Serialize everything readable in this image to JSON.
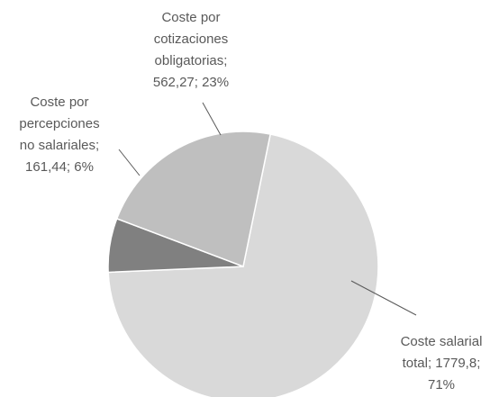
{
  "chart_data": {
    "type": "pie",
    "categories": [
      "Coste salarial total",
      "Coste por percepciones no salariales",
      "Coste por cotizaciones obligatorias"
    ],
    "values": [
      1779.8,
      161.44,
      562.27
    ],
    "value_labels": [
      [
        "Coste salarial",
        "total; 1779,8;",
        "71%"
      ],
      [
        "Coste por",
        "percepciones",
        "no salariales;",
        "161,44; 6%"
      ],
      [
        "Coste por",
        "cotizaciones",
        "obligatorias;",
        "562,27; 23%"
      ]
    ],
    "colors": [
      "#d9d9d9",
      "#808080",
      "#bfbfbf"
    ]
  }
}
